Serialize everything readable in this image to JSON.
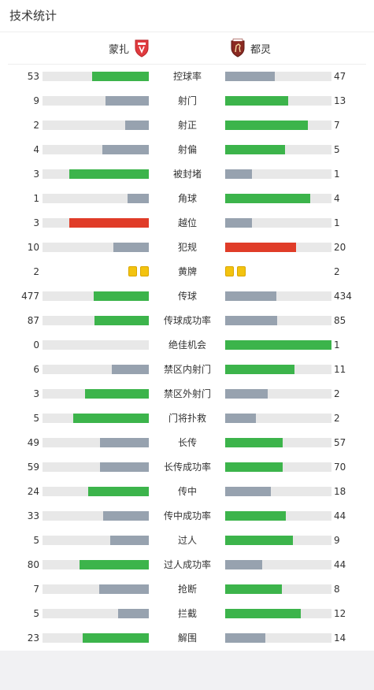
{
  "colors": {
    "win": "#3cb44b",
    "lose": "#97a2af",
    "track": "#e8e8e8",
    "alert": "#e03c28",
    "yellow_card": "#f3c30f"
  },
  "title": "技术统计",
  "teams": {
    "home": {
      "name": "蒙扎",
      "crest_icon": "monza-crest-icon",
      "crest_color": "#e03a3e"
    },
    "away": {
      "name": "都灵",
      "crest_icon": "torino-crest-icon",
      "crest_color": "#8a2a22"
    }
  },
  "stats": [
    {
      "label": "控球率",
      "home": "53",
      "away": "47",
      "home_frac": 0.53,
      "away_frac": 0.47,
      "home_color": "win",
      "away_color": "lose"
    },
    {
      "label": "射门",
      "home": "9",
      "away": "13",
      "home_frac": 0.41,
      "away_frac": 0.59,
      "home_color": "lose",
      "away_color": "win"
    },
    {
      "label": "射正",
      "home": "2",
      "away": "7",
      "home_frac": 0.22,
      "away_frac": 0.78,
      "home_color": "lose",
      "away_color": "win"
    },
    {
      "label": "射偏",
      "home": "4",
      "away": "5",
      "home_frac": 0.44,
      "away_frac": 0.56,
      "home_color": "lose",
      "away_color": "win"
    },
    {
      "label": "被封堵",
      "home": "3",
      "away": "1",
      "home_frac": 0.75,
      "away_frac": 0.25,
      "home_color": "win",
      "away_color": "lose"
    },
    {
      "label": "角球",
      "home": "1",
      "away": "4",
      "home_frac": 0.2,
      "away_frac": 0.8,
      "home_color": "lose",
      "away_color": "win"
    },
    {
      "label": "越位",
      "home": "3",
      "away": "1",
      "home_frac": 0.75,
      "away_frac": 0.25,
      "home_color": "alert",
      "away_color": "lose"
    },
    {
      "label": "犯规",
      "home": "10",
      "away": "20",
      "home_frac": 0.33,
      "away_frac": 0.67,
      "home_color": "lose",
      "away_color": "alert"
    },
    {
      "label": "黄牌",
      "home": "2",
      "away": "2",
      "type": "cards"
    },
    {
      "label": "传球",
      "home": "477",
      "away": "434",
      "home_frac": 0.52,
      "away_frac": 0.48,
      "home_color": "win",
      "away_color": "lose"
    },
    {
      "label": "传球成功率",
      "home": "87",
      "away": "85",
      "home_frac": 0.51,
      "away_frac": 0.49,
      "home_color": "win",
      "away_color": "lose"
    },
    {
      "label": "绝佳机会",
      "home": "0",
      "away": "1",
      "home_frac": 0,
      "away_frac": 1,
      "home_color": "lose",
      "away_color": "win"
    },
    {
      "label": "禁区内射门",
      "home": "6",
      "away": "11",
      "home_frac": 0.35,
      "away_frac": 0.65,
      "home_color": "lose",
      "away_color": "win"
    },
    {
      "label": "禁区外射门",
      "home": "3",
      "away": "2",
      "home_frac": 0.6,
      "away_frac": 0.4,
      "home_color": "win",
      "away_color": "lose"
    },
    {
      "label": "门将扑救",
      "home": "5",
      "away": "2",
      "home_frac": 0.71,
      "away_frac": 0.29,
      "home_color": "win",
      "away_color": "lose"
    },
    {
      "label": "长传",
      "home": "49",
      "away": "57",
      "home_frac": 0.46,
      "away_frac": 0.54,
      "home_color": "lose",
      "away_color": "win"
    },
    {
      "label": "长传成功率",
      "home": "59",
      "away": "70",
      "home_frac": 0.46,
      "away_frac": 0.54,
      "home_color": "lose",
      "away_color": "win"
    },
    {
      "label": "传中",
      "home": "24",
      "away": "18",
      "home_frac": 0.57,
      "away_frac": 0.43,
      "home_color": "win",
      "away_color": "lose"
    },
    {
      "label": "传中成功率",
      "home": "33",
      "away": "44",
      "home_frac": 0.43,
      "away_frac": 0.57,
      "home_color": "lose",
      "away_color": "win"
    },
    {
      "label": "过人",
      "home": "5",
      "away": "9",
      "home_frac": 0.36,
      "away_frac": 0.64,
      "home_color": "lose",
      "away_color": "win"
    },
    {
      "label": "过人成功率",
      "home": "80",
      "away": "44",
      "home_frac": 0.65,
      "away_frac": 0.35,
      "home_color": "win",
      "away_color": "lose"
    },
    {
      "label": "抢断",
      "home": "7",
      "away": "8",
      "home_frac": 0.47,
      "away_frac": 0.53,
      "home_color": "lose",
      "away_color": "win"
    },
    {
      "label": "拦截",
      "home": "5",
      "away": "12",
      "home_frac": 0.29,
      "away_frac": 0.71,
      "home_color": "lose",
      "away_color": "win"
    },
    {
      "label": "解围",
      "home": "23",
      "away": "14",
      "home_frac": 0.62,
      "away_frac": 0.38,
      "home_color": "win",
      "away_color": "lose"
    }
  ]
}
